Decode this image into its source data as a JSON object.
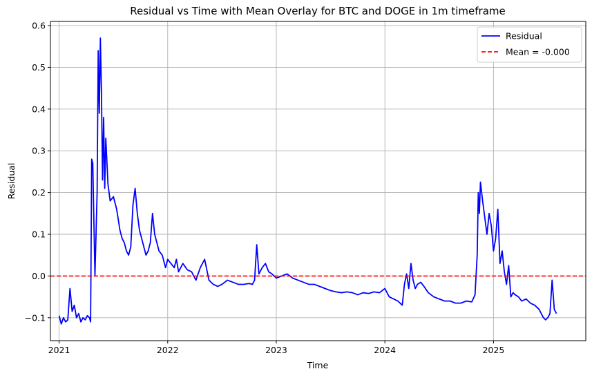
{
  "chart_data": {
    "type": "line",
    "title": "Residual vs Time with Mean Overlay for BTC and DOGE in 1m timeframe",
    "xlabel": "Time",
    "ylabel": "Residual",
    "xlim": [
      2020.92,
      2025.85
    ],
    "ylim": [
      -0.155,
      0.61
    ],
    "xticks": [
      2021,
      2022,
      2023,
      2024,
      2025
    ],
    "xtick_labels": [
      "2021",
      "2022",
      "2023",
      "2024",
      "2025"
    ],
    "yticks": [
      -0.1,
      0.0,
      0.1,
      0.2,
      0.3,
      0.4,
      0.5,
      0.6
    ],
    "ytick_labels": [
      "−0.1",
      "0.0",
      "0.1",
      "0.2",
      "0.3",
      "0.4",
      "0.5",
      "0.6"
    ],
    "grid": true,
    "legend_position": "top-right",
    "colors": {
      "residual": "#0000ff",
      "mean": "#ff0000",
      "grid": "#b0b0b0"
    },
    "series": [
      {
        "name": "Residual",
        "style": "solid",
        "x": [
          2021.0,
          2021.02,
          2021.04,
          2021.06,
          2021.08,
          2021.1,
          2021.12,
          2021.14,
          2021.16,
          2021.18,
          2021.2,
          2021.22,
          2021.24,
          2021.26,
          2021.28,
          2021.29,
          2021.3,
          2021.31,
          2021.33,
          2021.35,
          2021.36,
          2021.37,
          2021.38,
          2021.39,
          2021.4,
          2021.41,
          2021.42,
          2021.43,
          2021.45,
          2021.47,
          2021.5,
          2021.53,
          2021.56,
          2021.58,
          2021.6,
          2021.62,
          2021.64,
          2021.66,
          2021.68,
          2021.7,
          2021.72,
          2021.74,
          2021.76,
          2021.78,
          2021.8,
          2021.82,
          2021.84,
          2021.86,
          2021.88,
          2021.9,
          2021.92,
          2021.95,
          2021.98,
          2022.0,
          2022.03,
          2022.06,
          2022.08,
          2022.1,
          2022.14,
          2022.18,
          2022.22,
          2022.26,
          2022.3,
          2022.34,
          2022.38,
          2022.42,
          2022.46,
          2022.5,
          2022.55,
          2022.6,
          2022.65,
          2022.7,
          2022.75,
          2022.78,
          2022.8,
          2022.82,
          2022.84,
          2022.87,
          2022.9,
          2022.93,
          2022.96,
          2023.0,
          2023.05,
          2023.1,
          2023.15,
          2023.2,
          2023.25,
          2023.3,
          2023.35,
          2023.4,
          2023.45,
          2023.5,
          2023.55,
          2023.6,
          2023.65,
          2023.7,
          2023.75,
          2023.8,
          2023.85,
          2023.9,
          2023.95,
          2024.0,
          2024.04,
          2024.08,
          2024.12,
          2024.16,
          2024.18,
          2024.2,
          2024.22,
          2024.24,
          2024.26,
          2024.28,
          2024.3,
          2024.33,
          2024.36,
          2024.4,
          2024.45,
          2024.5,
          2024.55,
          2024.6,
          2024.65,
          2024.7,
          2024.75,
          2024.8,
          2024.83,
          2024.85,
          2024.86,
          2024.87,
          2024.88,
          2024.9,
          2024.92,
          2024.94,
          2024.96,
          2024.98,
          2025.0,
          2025.02,
          2025.04,
          2025.06,
          2025.08,
          2025.1,
          2025.12,
          2025.14,
          2025.16,
          2025.18,
          2025.2,
          2025.23,
          2025.26,
          2025.3,
          2025.34,
          2025.38,
          2025.42,
          2025.44,
          2025.46,
          2025.48,
          2025.5,
          2025.52,
          2025.54,
          2025.56,
          2025.58
        ],
        "y": [
          -0.095,
          -0.115,
          -0.1,
          -0.11,
          -0.105,
          -0.03,
          -0.085,
          -0.07,
          -0.1,
          -0.09,
          -0.11,
          -0.1,
          -0.105,
          -0.095,
          -0.1,
          -0.11,
          0.28,
          0.27,
          0.0,
          0.2,
          0.54,
          0.39,
          0.57,
          0.44,
          0.23,
          0.38,
          0.21,
          0.33,
          0.22,
          0.18,
          0.19,
          0.16,
          0.11,
          0.09,
          0.08,
          0.06,
          0.05,
          0.07,
          0.17,
          0.21,
          0.15,
          0.11,
          0.09,
          0.07,
          0.05,
          0.06,
          0.08,
          0.15,
          0.1,
          0.08,
          0.06,
          0.05,
          0.02,
          0.04,
          0.03,
          0.02,
          0.04,
          0.01,
          0.03,
          0.015,
          0.01,
          -0.01,
          0.02,
          0.04,
          -0.01,
          -0.02,
          -0.025,
          -0.02,
          -0.01,
          -0.015,
          -0.02,
          -0.02,
          -0.018,
          -0.02,
          -0.01,
          0.075,
          0.005,
          0.02,
          0.03,
          0.01,
          0.005,
          -0.005,
          0.0,
          0.005,
          -0.005,
          -0.01,
          -0.015,
          -0.02,
          -0.02,
          -0.025,
          -0.03,
          -0.035,
          -0.038,
          -0.04,
          -0.038,
          -0.04,
          -0.045,
          -0.04,
          -0.042,
          -0.038,
          -0.04,
          -0.03,
          -0.05,
          -0.055,
          -0.06,
          -0.07,
          -0.02,
          0.005,
          -0.03,
          0.03,
          -0.01,
          -0.03,
          -0.02,
          -0.015,
          -0.025,
          -0.04,
          -0.05,
          -0.055,
          -0.06,
          -0.06,
          -0.065,
          -0.065,
          -0.06,
          -0.062,
          -0.045,
          0.05,
          0.2,
          0.15,
          0.225,
          0.18,
          0.14,
          0.1,
          0.15,
          0.12,
          0.06,
          0.09,
          0.16,
          0.03,
          0.06,
          0.01,
          -0.02,
          0.025,
          -0.05,
          -0.04,
          -0.045,
          -0.05,
          -0.06,
          -0.055,
          -0.065,
          -0.07,
          -0.08,
          -0.09,
          -0.1,
          -0.105,
          -0.1,
          -0.09,
          -0.01,
          -0.08,
          -0.09
        ]
      },
      {
        "name": "Mean = -0.000",
        "style": "dashed",
        "value": -0.0
      }
    ]
  }
}
